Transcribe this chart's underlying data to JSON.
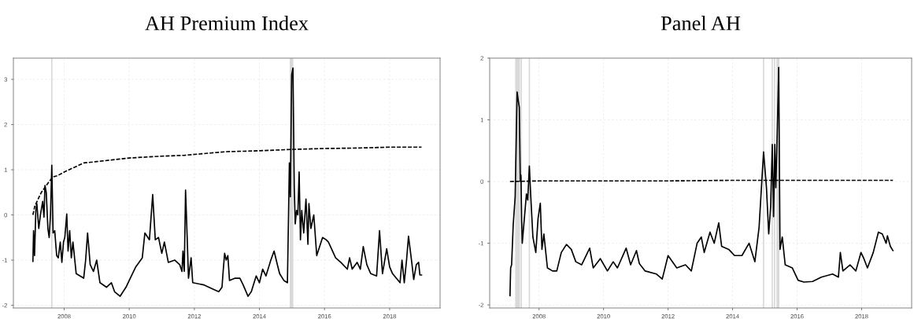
{
  "chart_data": [
    {
      "type": "line",
      "title": "AH Premium Index",
      "xlim": [
        2006.44,
        2019.55
      ],
      "ylim": [
        -2.06,
        3.47
      ],
      "xticks": [
        2008,
        2010,
        2012,
        2014,
        2016,
        2018
      ],
      "yticks": [
        -2,
        -1,
        0,
        1,
        2,
        3
      ],
      "grid": true,
      "ref_lines": [
        {
          "axis": "x",
          "value": 2007.62,
          "label": null,
          "color": "#d9d9d9"
        }
      ],
      "bands": [
        {
          "axis": "x",
          "from": 2014.93,
          "to": 2015.04,
          "label": null,
          "color": "#d9d9d9"
        }
      ],
      "series": [
        {
          "color": "#000000",
          "line_style": "solid",
          "x": [
            2007.04,
            2007.06,
            2007.09,
            2007.13,
            2007.16,
            2007.22,
            2007.27,
            2007.34,
            2007.38,
            2007.41,
            2007.45,
            2007.5,
            2007.54,
            2007.58,
            2007.62,
            2007.66,
            2007.71,
            2007.77,
            2007.82,
            2007.88,
            2007.93,
            2007.98,
            2008.02,
            2008.08,
            2008.12,
            2008.17,
            2008.22,
            2008.27,
            2008.37,
            2008.6,
            2008.66,
            2008.72,
            2008.8,
            2008.9,
            2009.0,
            2009.1,
            2009.3,
            2009.45,
            2009.55,
            2009.72,
            2009.9,
            2010.0,
            2010.2,
            2010.4,
            2010.48,
            2010.62,
            2010.72,
            2010.8,
            2010.9,
            2011.0,
            2011.08,
            2011.2,
            2011.4,
            2011.55,
            2011.62,
            2011.65,
            2011.69,
            2011.73,
            2011.78,
            2011.82,
            2011.9,
            2011.95,
            2012.3,
            2012.6,
            2012.75,
            2012.85,
            2012.88,
            2012.93,
            2012.98,
            2013.03,
            2013.08,
            2013.25,
            2013.4,
            2013.5,
            2013.65,
            2013.75,
            2013.9,
            2014.0,
            2014.1,
            2014.2,
            2014.35,
            2014.45,
            2014.55,
            2014.62,
            2014.75,
            2014.86,
            2014.92,
            2014.95,
            2014.99,
            2015.03,
            2015.07,
            2015.1,
            2015.14,
            2015.18,
            2015.22,
            2015.26,
            2015.3,
            2015.36,
            2015.43,
            2015.49,
            2015.52,
            2015.58,
            2015.67,
            2015.76,
            2015.94,
            2016.05,
            2016.12,
            2016.34,
            2016.5,
            2016.7,
            2016.77,
            2016.85,
            2017.0,
            2017.1,
            2017.19,
            2017.3,
            2017.42,
            2017.6,
            2017.69,
            2017.78,
            2017.91,
            2018.0,
            2018.09,
            2018.32,
            2018.38,
            2018.45,
            2018.52,
            2018.58,
            2018.68,
            2018.74,
            2018.82,
            2018.89,
            2018.93,
            2018.98
          ],
          "values": [
            -1.03,
            -0.35,
            -0.9,
            0.1,
            0.25,
            -0.3,
            0.0,
            0.3,
            -0.05,
            0.65,
            0.5,
            -0.3,
            -0.5,
            0.0,
            1.1,
            -0.4,
            -0.35,
            -0.9,
            -0.95,
            -0.6,
            -1.05,
            -0.6,
            -0.5,
            0.02,
            -0.8,
            -0.35,
            -0.95,
            -0.6,
            -1.3,
            -1.4,
            -1.0,
            -0.4,
            -1.1,
            -1.25,
            -1.0,
            -1.5,
            -1.6,
            -1.5,
            -1.7,
            -1.8,
            -1.6,
            -1.45,
            -1.15,
            -0.95,
            -0.4,
            -0.55,
            0.45,
            -0.55,
            -0.5,
            -0.85,
            -0.6,
            -1.05,
            -1.0,
            -1.1,
            -1.25,
            -0.8,
            -1.25,
            0.55,
            -0.5,
            -1.4,
            -0.95,
            -1.5,
            -1.55,
            -1.65,
            -1.7,
            -1.6,
            -1.3,
            -0.85,
            -1.0,
            -0.9,
            -1.45,
            -1.4,
            -1.4,
            -1.55,
            -1.8,
            -1.7,
            -1.35,
            -1.5,
            -1.2,
            -1.35,
            -1.0,
            -0.8,
            -1.1,
            -1.3,
            -1.45,
            -1.5,
            1.15,
            0.4,
            3.1,
            3.25,
            0.6,
            -0.2,
            0.1,
            0.0,
            0.95,
            -0.55,
            0.1,
            -0.4,
            0.35,
            -0.65,
            0.25,
            -0.3,
            0.0,
            -0.9,
            -0.5,
            -0.55,
            -0.6,
            -0.95,
            -1.05,
            -1.2,
            -0.95,
            -1.2,
            -1.05,
            -1.2,
            -0.7,
            -1.1,
            -1.3,
            -1.35,
            -0.35,
            -1.3,
            -0.75,
            -1.15,
            -1.3,
            -1.5,
            -1.0,
            -1.5,
            -1.0,
            -0.47,
            -1.05,
            -1.43,
            -1.1,
            -1.05,
            -1.33,
            -1.33
          ]
        },
        {
          "color": "#000000",
          "line_style": "dashed",
          "x": [
            2007.04,
            2007.1,
            2007.3,
            2007.5,
            2007.65,
            2007.8,
            2008.0,
            2008.3,
            2008.6,
            2009.0,
            2009.5,
            2010.0,
            2011.0,
            2011.7,
            2012.5,
            2013.0,
            2014.0,
            2015.0,
            2016.0,
            2017.0,
            2018.0,
            2018.98
          ],
          "values": [
            0.0,
            0.2,
            0.5,
            0.7,
            0.84,
            0.87,
            0.95,
            1.05,
            1.15,
            1.18,
            1.22,
            1.26,
            1.3,
            1.32,
            1.37,
            1.4,
            1.42,
            1.45,
            1.47,
            1.48,
            1.5,
            1.5
          ]
        }
      ]
    },
    {
      "type": "line",
      "title": "Panel AH",
      "xlim": [
        2006.47,
        2019.55
      ],
      "ylim": [
        -2.05,
        2
      ],
      "xticks": [
        2008,
        2010,
        2012,
        2014,
        2016,
        2018
      ],
      "yticks": [
        -2,
        -1,
        0,
        1,
        2
      ],
      "grid": true,
      "ref_lines": [
        {
          "axis": "x",
          "value": 2007.45,
          "label": null,
          "color": "#d9d9d9"
        },
        {
          "axis": "x",
          "value": 2007.7,
          "label": null,
          "color": "#d9d9d9"
        },
        {
          "axis": "x",
          "value": 2014.96,
          "label": null,
          "color": "#d9d9d9"
        },
        {
          "axis": "x",
          "value": 2015.23,
          "label": null,
          "color": "#d9d9d9"
        },
        {
          "axis": "x",
          "value": 2015.3,
          "label": null,
          "color": "#d9d9d9"
        }
      ],
      "bands": [
        {
          "axis": "x",
          "from": 2007.26,
          "to": 2007.41,
          "label": null,
          "color": "#d9d9d9"
        },
        {
          "axis": "x",
          "from": 2015.36,
          "to": 2015.45,
          "label": null,
          "color": "#d9d9d9"
        }
      ],
      "series": [
        {
          "color": "#000000",
          "line_style": "solid",
          "x": [
            2007.1,
            2007.12,
            2007.15,
            2007.2,
            2007.26,
            2007.32,
            2007.36,
            2007.39,
            2007.42,
            2007.44,
            2007.46,
            2007.48,
            2007.61,
            2007.65,
            2007.7,
            2007.74,
            2007.81,
            2007.9,
            2007.97,
            2008.04,
            2008.09,
            2008.15,
            2008.26,
            2008.42,
            2008.55,
            2008.69,
            2008.85,
            2009.0,
            2009.14,
            2009.32,
            2009.57,
            2009.68,
            2009.9,
            2010.12,
            2010.3,
            2010.43,
            2010.7,
            2010.84,
            2011.02,
            2011.11,
            2011.29,
            2011.64,
            2011.82,
            2012.0,
            2012.27,
            2012.54,
            2012.72,
            2012.9,
            2013.03,
            2013.12,
            2013.3,
            2013.43,
            2013.57,
            2013.66,
            2013.88,
            2014.06,
            2014.29,
            2014.51,
            2014.69,
            2014.82,
            2014.96,
            2015.05,
            2015.12,
            2015.18,
            2015.23,
            2015.27,
            2015.31,
            2015.34,
            2015.38,
            2015.43,
            2015.47,
            2015.54,
            2015.63,
            2015.85,
            2016.03,
            2016.21,
            2016.48,
            2016.75,
            2017.1,
            2017.28,
            2017.34,
            2017.42,
            2017.64,
            2017.82,
            2017.98,
            2018.07,
            2018.18,
            2018.36,
            2018.52,
            2018.64,
            2018.76,
            2018.8,
            2018.89,
            2018.97
          ],
          "values": [
            -1.85,
            -1.4,
            -1.35,
            -0.7,
            -0.25,
            1.45,
            1.3,
            1.2,
            0.0,
            0.1,
            -0.6,
            -1.0,
            -0.2,
            -0.3,
            0.25,
            -0.2,
            -0.9,
            -1.15,
            -0.6,
            -0.35,
            -1.1,
            -0.85,
            -1.4,
            -1.45,
            -1.45,
            -1.15,
            -1.02,
            -1.1,
            -1.3,
            -1.35,
            -1.08,
            -1.4,
            -1.25,
            -1.45,
            -1.3,
            -1.4,
            -1.08,
            -1.35,
            -1.12,
            -1.33,
            -1.45,
            -1.5,
            -1.58,
            -1.2,
            -1.4,
            -1.35,
            -1.45,
            -1.0,
            -0.9,
            -1.15,
            -0.82,
            -1.0,
            -0.67,
            -1.05,
            -1.1,
            -1.2,
            -1.2,
            -1.0,
            -1.3,
            -0.75,
            0.48,
            -0.1,
            -0.85,
            -0.4,
            0.6,
            -0.57,
            0.6,
            -0.1,
            0.7,
            1.85,
            -1.1,
            -0.9,
            -1.35,
            -1.4,
            -1.6,
            -1.63,
            -1.62,
            -1.55,
            -1.5,
            -1.55,
            -1.15,
            -1.45,
            -1.35,
            -1.45,
            -1.15,
            -1.25,
            -1.4,
            -1.15,
            -0.82,
            -0.85,
            -1.0,
            -0.88,
            -1.05,
            -1.12
          ]
        },
        {
          "color": "#000000",
          "line_style": "dashed",
          "x": [
            2007.1,
            2008.0,
            2010.0,
            2012.0,
            2014.0,
            2016.0,
            2018.0,
            2018.97
          ],
          "values": [
            0.0,
            0.01,
            0.01,
            0.01,
            0.02,
            0.02,
            0.02,
            0.02
          ]
        }
      ]
    }
  ]
}
